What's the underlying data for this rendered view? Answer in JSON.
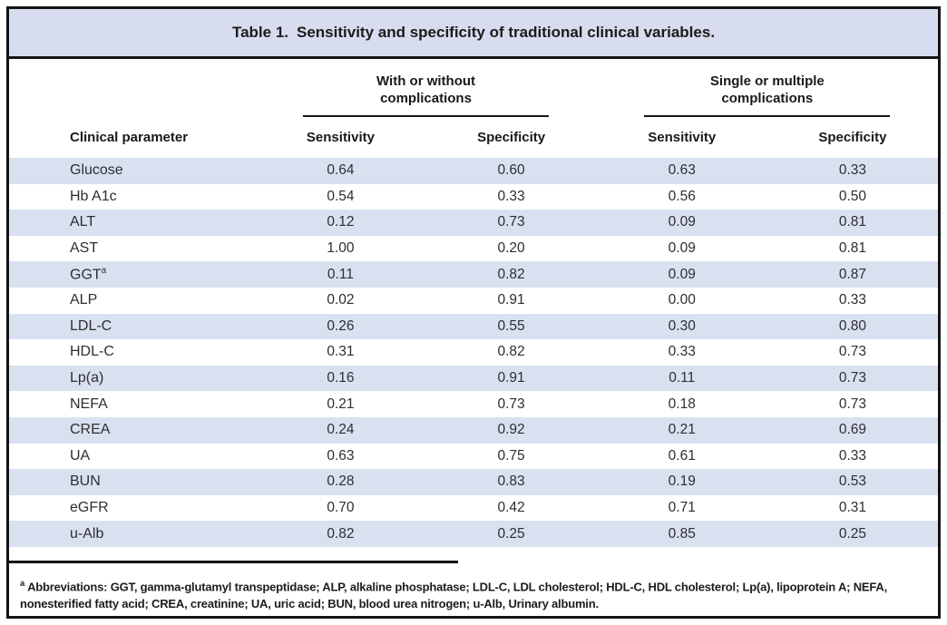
{
  "title": {
    "label": "Table 1.",
    "text": "Sensitivity and specificity of traditional clinical variables."
  },
  "header": {
    "param_column": "Clinical parameter",
    "groups": [
      {
        "line1": "With or without",
        "line2": "complications",
        "subcolumns": [
          "Sensitivity",
          "Specificity"
        ]
      },
      {
        "line1": "Single or multiple",
        "line2": "complications",
        "subcolumns": [
          "Sensitivity",
          "Specificity"
        ]
      }
    ]
  },
  "rows": [
    {
      "param": "Glucose",
      "sup": "",
      "values": [
        "0.64",
        "0.60",
        "0.63",
        "0.33"
      ]
    },
    {
      "param": "Hb A1c",
      "sup": "",
      "values": [
        "0.54",
        "0.33",
        "0.56",
        "0.50"
      ]
    },
    {
      "param": "ALT",
      "sup": "",
      "values": [
        "0.12",
        "0.73",
        "0.09",
        "0.81"
      ]
    },
    {
      "param": "AST",
      "sup": "",
      "values": [
        "1.00",
        "0.20",
        "0.09",
        "0.81"
      ]
    },
    {
      "param": "GGT",
      "sup": "a",
      "values": [
        "0.11",
        "0.82",
        "0.09",
        "0.87"
      ]
    },
    {
      "param": "ALP",
      "sup": "",
      "values": [
        "0.02",
        "0.91",
        "0.00",
        "0.33"
      ]
    },
    {
      "param": "LDL-C",
      "sup": "",
      "values": [
        "0.26",
        "0.55",
        "0.30",
        "0.80"
      ]
    },
    {
      "param": "HDL-C",
      "sup": "",
      "values": [
        "0.31",
        "0.82",
        "0.33",
        "0.73"
      ]
    },
    {
      "param": "Lp(a)",
      "sup": "",
      "values": [
        "0.16",
        "0.91",
        "0.11",
        "0.73"
      ]
    },
    {
      "param": "NEFA",
      "sup": "",
      "values": [
        "0.21",
        "0.73",
        "0.18",
        "0.73"
      ]
    },
    {
      "param": "CREA",
      "sup": "",
      "values": [
        "0.24",
        "0.92",
        "0.21",
        "0.69"
      ]
    },
    {
      "param": "UA",
      "sup": "",
      "values": [
        "0.63",
        "0.75",
        "0.61",
        "0.33"
      ]
    },
    {
      "param": "BUN",
      "sup": "",
      "values": [
        "0.28",
        "0.83",
        "0.19",
        "0.53"
      ]
    },
    {
      "param": "eGFR",
      "sup": "",
      "values": [
        "0.70",
        "0.42",
        "0.71",
        "0.31"
      ]
    },
    {
      "param": "u-Alb",
      "sup": "",
      "values": [
        "0.82",
        "0.25",
        "0.85",
        "0.25"
      ]
    }
  ],
  "footnote": {
    "marker": "a",
    "text": "Abbreviations: GGT, gamma-glutamyl transpeptidase; ALP, alkaline phosphatase; LDL-C, LDL cholesterol; HDL-C, HDL cholesterol; Lp(a), lipoprotein A; NEFA, nonesterified fatty acid; CREA, creatinine; UA, uric acid; BUN, blood urea nitrogen; u-Alb, Urinary albumin."
  },
  "colors": {
    "band": "#d7ddef",
    "stripe": "#d9e1f1",
    "border": "#141414",
    "text": "#2e2e2e"
  }
}
